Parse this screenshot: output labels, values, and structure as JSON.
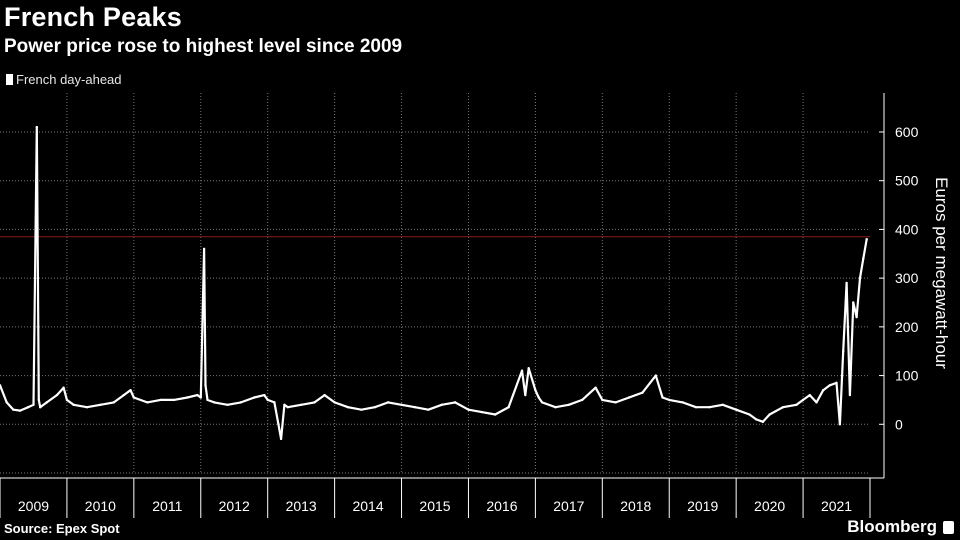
{
  "title": "French Peaks",
  "subtitle": "Power price rose to highest level since 2009",
  "source": "Source: Epex Spot",
  "brand": "Bloomberg",
  "chart_data": {
    "type": "line",
    "series": [
      {
        "name": "French day-ahead",
        "color": "#ffffff",
        "x": [
          2009.0,
          2009.1,
          2009.2,
          2009.3,
          2009.42,
          2009.5,
          2009.55,
          2009.58,
          2009.6,
          2009.7,
          2009.85,
          2009.95,
          2010.0,
          2010.1,
          2010.3,
          2010.5,
          2010.7,
          2010.85,
          2010.95,
          2011.0,
          2011.2,
          2011.4,
          2011.6,
          2011.8,
          2011.95,
          2012.0,
          2012.05,
          2012.07,
          2012.1,
          2012.2,
          2012.4,
          2012.6,
          2012.8,
          2012.95,
          2013.0,
          2013.1,
          2013.2,
          2013.25,
          2013.3,
          2013.5,
          2013.7,
          2013.85,
          2014.0,
          2014.2,
          2014.4,
          2014.6,
          2014.8,
          2015.0,
          2015.2,
          2015.4,
          2015.6,
          2015.8,
          2016.0,
          2016.2,
          2016.4,
          2016.6,
          2016.8,
          2016.85,
          2016.9,
          2017.0,
          2017.05,
          2017.1,
          2017.3,
          2017.5,
          2017.7,
          2017.9,
          2018.0,
          2018.2,
          2018.4,
          2018.6,
          2018.8,
          2018.9,
          2019.0,
          2019.2,
          2019.4,
          2019.6,
          2019.8,
          2020.0,
          2020.2,
          2020.3,
          2020.4,
          2020.5,
          2020.7,
          2020.9,
          2021.0,
          2021.1,
          2021.2,
          2021.3,
          2021.4,
          2021.5,
          2021.55,
          2021.6,
          2021.65,
          2021.7,
          2021.75,
          2021.8,
          2021.85,
          2021.9,
          2021.95
        ],
        "y": [
          80,
          45,
          30,
          28,
          35,
          40,
          610,
          50,
          35,
          45,
          60,
          75,
          50,
          40,
          35,
          40,
          45,
          60,
          70,
          55,
          45,
          50,
          50,
          55,
          60,
          55,
          360,
          80,
          50,
          45,
          40,
          45,
          55,
          60,
          50,
          45,
          -30,
          40,
          35,
          40,
          45,
          60,
          45,
          35,
          30,
          35,
          45,
          40,
          35,
          30,
          40,
          45,
          30,
          25,
          20,
          35,
          110,
          60,
          115,
          70,
          55,
          45,
          35,
          40,
          50,
          75,
          50,
          45,
          55,
          65,
          100,
          55,
          50,
          45,
          35,
          35,
          40,
          30,
          20,
          10,
          5,
          20,
          35,
          40,
          50,
          60,
          45,
          70,
          80,
          85,
          0,
          150,
          290,
          60,
          250,
          220,
          300,
          340,
          380
        ]
      }
    ],
    "ylabel": "Euros per megawatt-hour",
    "ylim": [
      -100,
      680
    ],
    "yticks": [
      0,
      100,
      200,
      300,
      400,
      500,
      600
    ],
    "xlim": [
      2009.0,
      2022.0
    ],
    "xcategories": [
      "2009",
      "2010",
      "2011",
      "2012",
      "2013",
      "2014",
      "2015",
      "2016",
      "2017",
      "2018",
      "2019",
      "2020",
      "2021"
    ],
    "reference_line": {
      "y": 385,
      "color": "#8b1a1a"
    },
    "grid": true,
    "legend": "top-left"
  }
}
